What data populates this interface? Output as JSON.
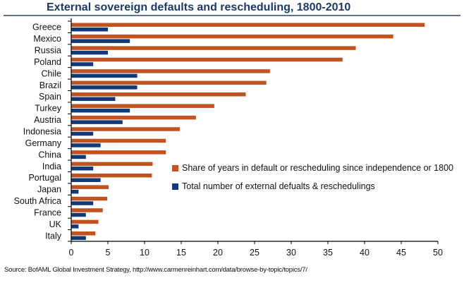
{
  "chart_data": {
    "type": "bar",
    "orientation": "horizontal",
    "title": "External sovereign defaults and rescheduling, 1800-2010",
    "xlabel": "",
    "ylabel": "",
    "xlim": [
      0,
      50
    ],
    "xticks": [
      0,
      5,
      10,
      15,
      20,
      25,
      30,
      35,
      40,
      45,
      50
    ],
    "grid": false,
    "legend_position": "right-center",
    "categories": [
      "Greece",
      "Mexico",
      "Russia",
      "Poland",
      "Chile",
      "Brazil",
      "Spain",
      "Turkey",
      "Austria",
      "Indonesia",
      "Germany",
      "China",
      "India",
      "Portugal",
      "Japan",
      "South Africa",
      "France",
      "UK",
      "Italy"
    ],
    "series": [
      {
        "name": "Share of years in default or rescheduling since independence or 1800",
        "color": "#c0531f",
        "values": [
          48.2,
          43.9,
          38.8,
          37.0,
          27.1,
          26.6,
          23.8,
          19.5,
          17.0,
          14.8,
          12.9,
          12.9,
          11.1,
          11.0,
          5.1,
          4.9,
          4.3,
          3.7,
          3.3
        ]
      },
      {
        "name": "Total number of external defualts & reschedulings",
        "color": "#123a78",
        "values": [
          5,
          8,
          5,
          3,
          9,
          9,
          6,
          8,
          7,
          3,
          4,
          2,
          3,
          4,
          1,
          3,
          2,
          1,
          2
        ]
      }
    ],
    "source": "Source: BofAML Global Investment Strategy,  http://www.carmenreinhart.com/data/browse-by-topic/topics/7/"
  },
  "legend": {
    "items": [
      {
        "label": "Share of years in default or rescheduling since independence or 1800",
        "color": "#c0531f"
      },
      {
        "label": "Total number of external defualts & reschedulings",
        "color": "#123a78"
      }
    ]
  }
}
